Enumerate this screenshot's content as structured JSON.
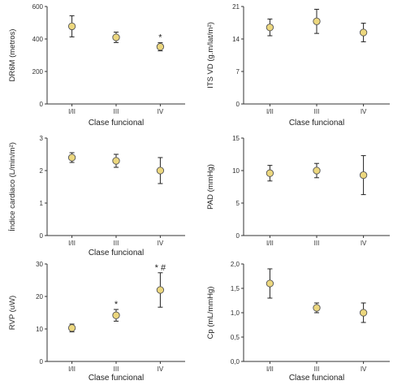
{
  "colors": {
    "marker": "#ecd77e"
  },
  "chart_data": [
    {
      "type": "scatter",
      "categories": [
        "I/II",
        "III",
        "IV"
      ],
      "values": [
        478,
        410,
        352
      ],
      "errors": [
        65,
        32,
        25
      ],
      "xlabel": "Clase funcional",
      "ylabel": "DR6M (metros)",
      "ylim": [
        0,
        600
      ],
      "yticks": [
        0,
        200,
        400,
        600
      ],
      "ytick_labels": [
        "0",
        "200",
        "400",
        "600"
      ],
      "annotations": [
        "",
        "",
        "*"
      ]
    },
    {
      "type": "scatter",
      "categories": [
        "I/II",
        "III",
        "IV"
      ],
      "values": [
        16.5,
        17.8,
        15.4
      ],
      "errors": [
        1.8,
        2.6,
        2.0
      ],
      "xlabel": "Clase funcional",
      "ylabel": "ITS VD (g.m/lat/m²)",
      "ylim": [
        0,
        21
      ],
      "yticks": [
        0,
        7,
        14,
        21
      ],
      "ytick_labels": [
        "0",
        "7",
        "14",
        "21"
      ],
      "annotations": [
        "",
        "",
        ""
      ]
    },
    {
      "type": "scatter",
      "categories": [
        "I/II",
        "III",
        "IV"
      ],
      "values": [
        2.4,
        2.3,
        2.0
      ],
      "errors": [
        0.15,
        0.2,
        0.4
      ],
      "xlabel": "Clase funcional",
      "ylabel": "Índice cardiaco (L/min/m²)",
      "ylim": [
        0,
        3
      ],
      "yticks": [
        0,
        1,
        2,
        3
      ],
      "ytick_labels": [
        "0",
        "1",
        "2",
        "3"
      ],
      "annotations": [
        "",
        "",
        ""
      ]
    },
    {
      "type": "scatter",
      "categories": [
        "I/II",
        "III",
        "IV"
      ],
      "values": [
        9.6,
        10.0,
        9.3
      ],
      "errors": [
        1.2,
        1.1,
        3.0
      ],
      "xlabel": "",
      "ylabel": "PAD (mmHg)",
      "ylim": [
        0,
        15
      ],
      "yticks": [
        0,
        5,
        10,
        15
      ],
      "ytick_labels": [
        "0",
        "5",
        "10",
        "15"
      ],
      "annotations": [
        "",
        "",
        ""
      ]
    },
    {
      "type": "scatter",
      "categories": [
        "I/II",
        "III",
        "IV"
      ],
      "values": [
        10.3,
        14.2,
        22.0
      ],
      "errors": [
        1.2,
        1.8,
        5.3
      ],
      "xlabel": "Clase funcional",
      "ylabel": "RVP (uW)",
      "ylim": [
        0,
        30
      ],
      "yticks": [
        0,
        10,
        20,
        30
      ],
      "ytick_labels": [
        "0",
        "10",
        "20",
        "30"
      ],
      "annotations": [
        "",
        "*",
        "* #"
      ]
    },
    {
      "type": "scatter",
      "categories": [
        "I/II",
        "III",
        "IV"
      ],
      "values": [
        1.6,
        1.1,
        1.0
      ],
      "errors": [
        0.3,
        0.1,
        0.2
      ],
      "xlabel": "Clase funcional",
      "ylabel": "Cp (mL/mmHg)",
      "ylim": [
        0,
        2
      ],
      "yticks": [
        0,
        0.5,
        1.0,
        1.5,
        2.0
      ],
      "ytick_labels": [
        "0,0",
        "0,5",
        "1,0",
        "1,5",
        "2,0"
      ],
      "annotations": [
        "",
        "",
        ""
      ]
    }
  ]
}
